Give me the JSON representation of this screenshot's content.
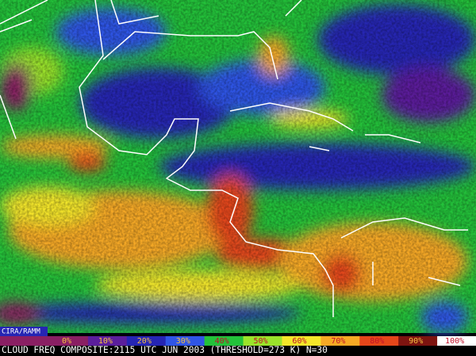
{
  "credit": "CIRA/RAMM",
  "legend": {
    "labels": [
      "0%",
      "10%",
      "20%",
      "30%",
      "40%",
      "50%",
      "60%",
      "70%",
      "80%",
      "90%",
      "100%"
    ],
    "colors": [
      "#8a1f63",
      "#5b1e9c",
      "#2525b4",
      "#2f55e6",
      "#23c23a",
      "#9be32a",
      "#f4e62a",
      "#f6a925",
      "#e5461a",
      "#7d1410",
      "#ffffff"
    ]
  },
  "caption": "CLOUD FREQ COMPOSITE:2115 UTC JUN 2003 (THRESHOLD=273 K) N=30"
}
